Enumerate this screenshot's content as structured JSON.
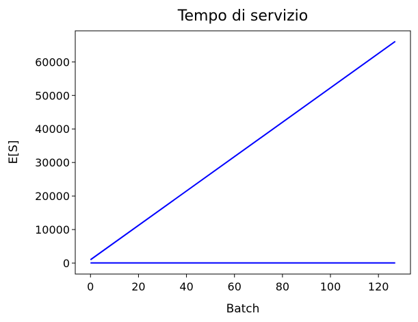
{
  "chart_data": {
    "type": "line",
    "title": "Tempo di servizio",
    "xlabel": "Batch",
    "ylabel": "E[S]",
    "xlim": [
      -6.35,
      133.35
    ],
    "ylim": [
      -3265,
      69265
    ],
    "xticks": [
      0,
      20,
      40,
      60,
      80,
      100,
      120
    ],
    "xtick_labels": [
      "0",
      "20",
      "40",
      "60",
      "80",
      "100",
      "120"
    ],
    "yticks": [
      0,
      10000,
      20000,
      30000,
      40000,
      50000,
      60000
    ],
    "ytick_labels": [
      "0",
      "10000",
      "20000",
      "30000",
      "40000",
      "50000",
      "60000"
    ],
    "grid": false,
    "series": [
      {
        "x": [
          0,
          127
        ],
        "y": [
          1000,
          66100
        ],
        "color": "#0000ff"
      },
      {
        "x": [
          0,
          127
        ],
        "y": [
          50,
          50
        ],
        "color": "#0000ff"
      }
    ]
  }
}
